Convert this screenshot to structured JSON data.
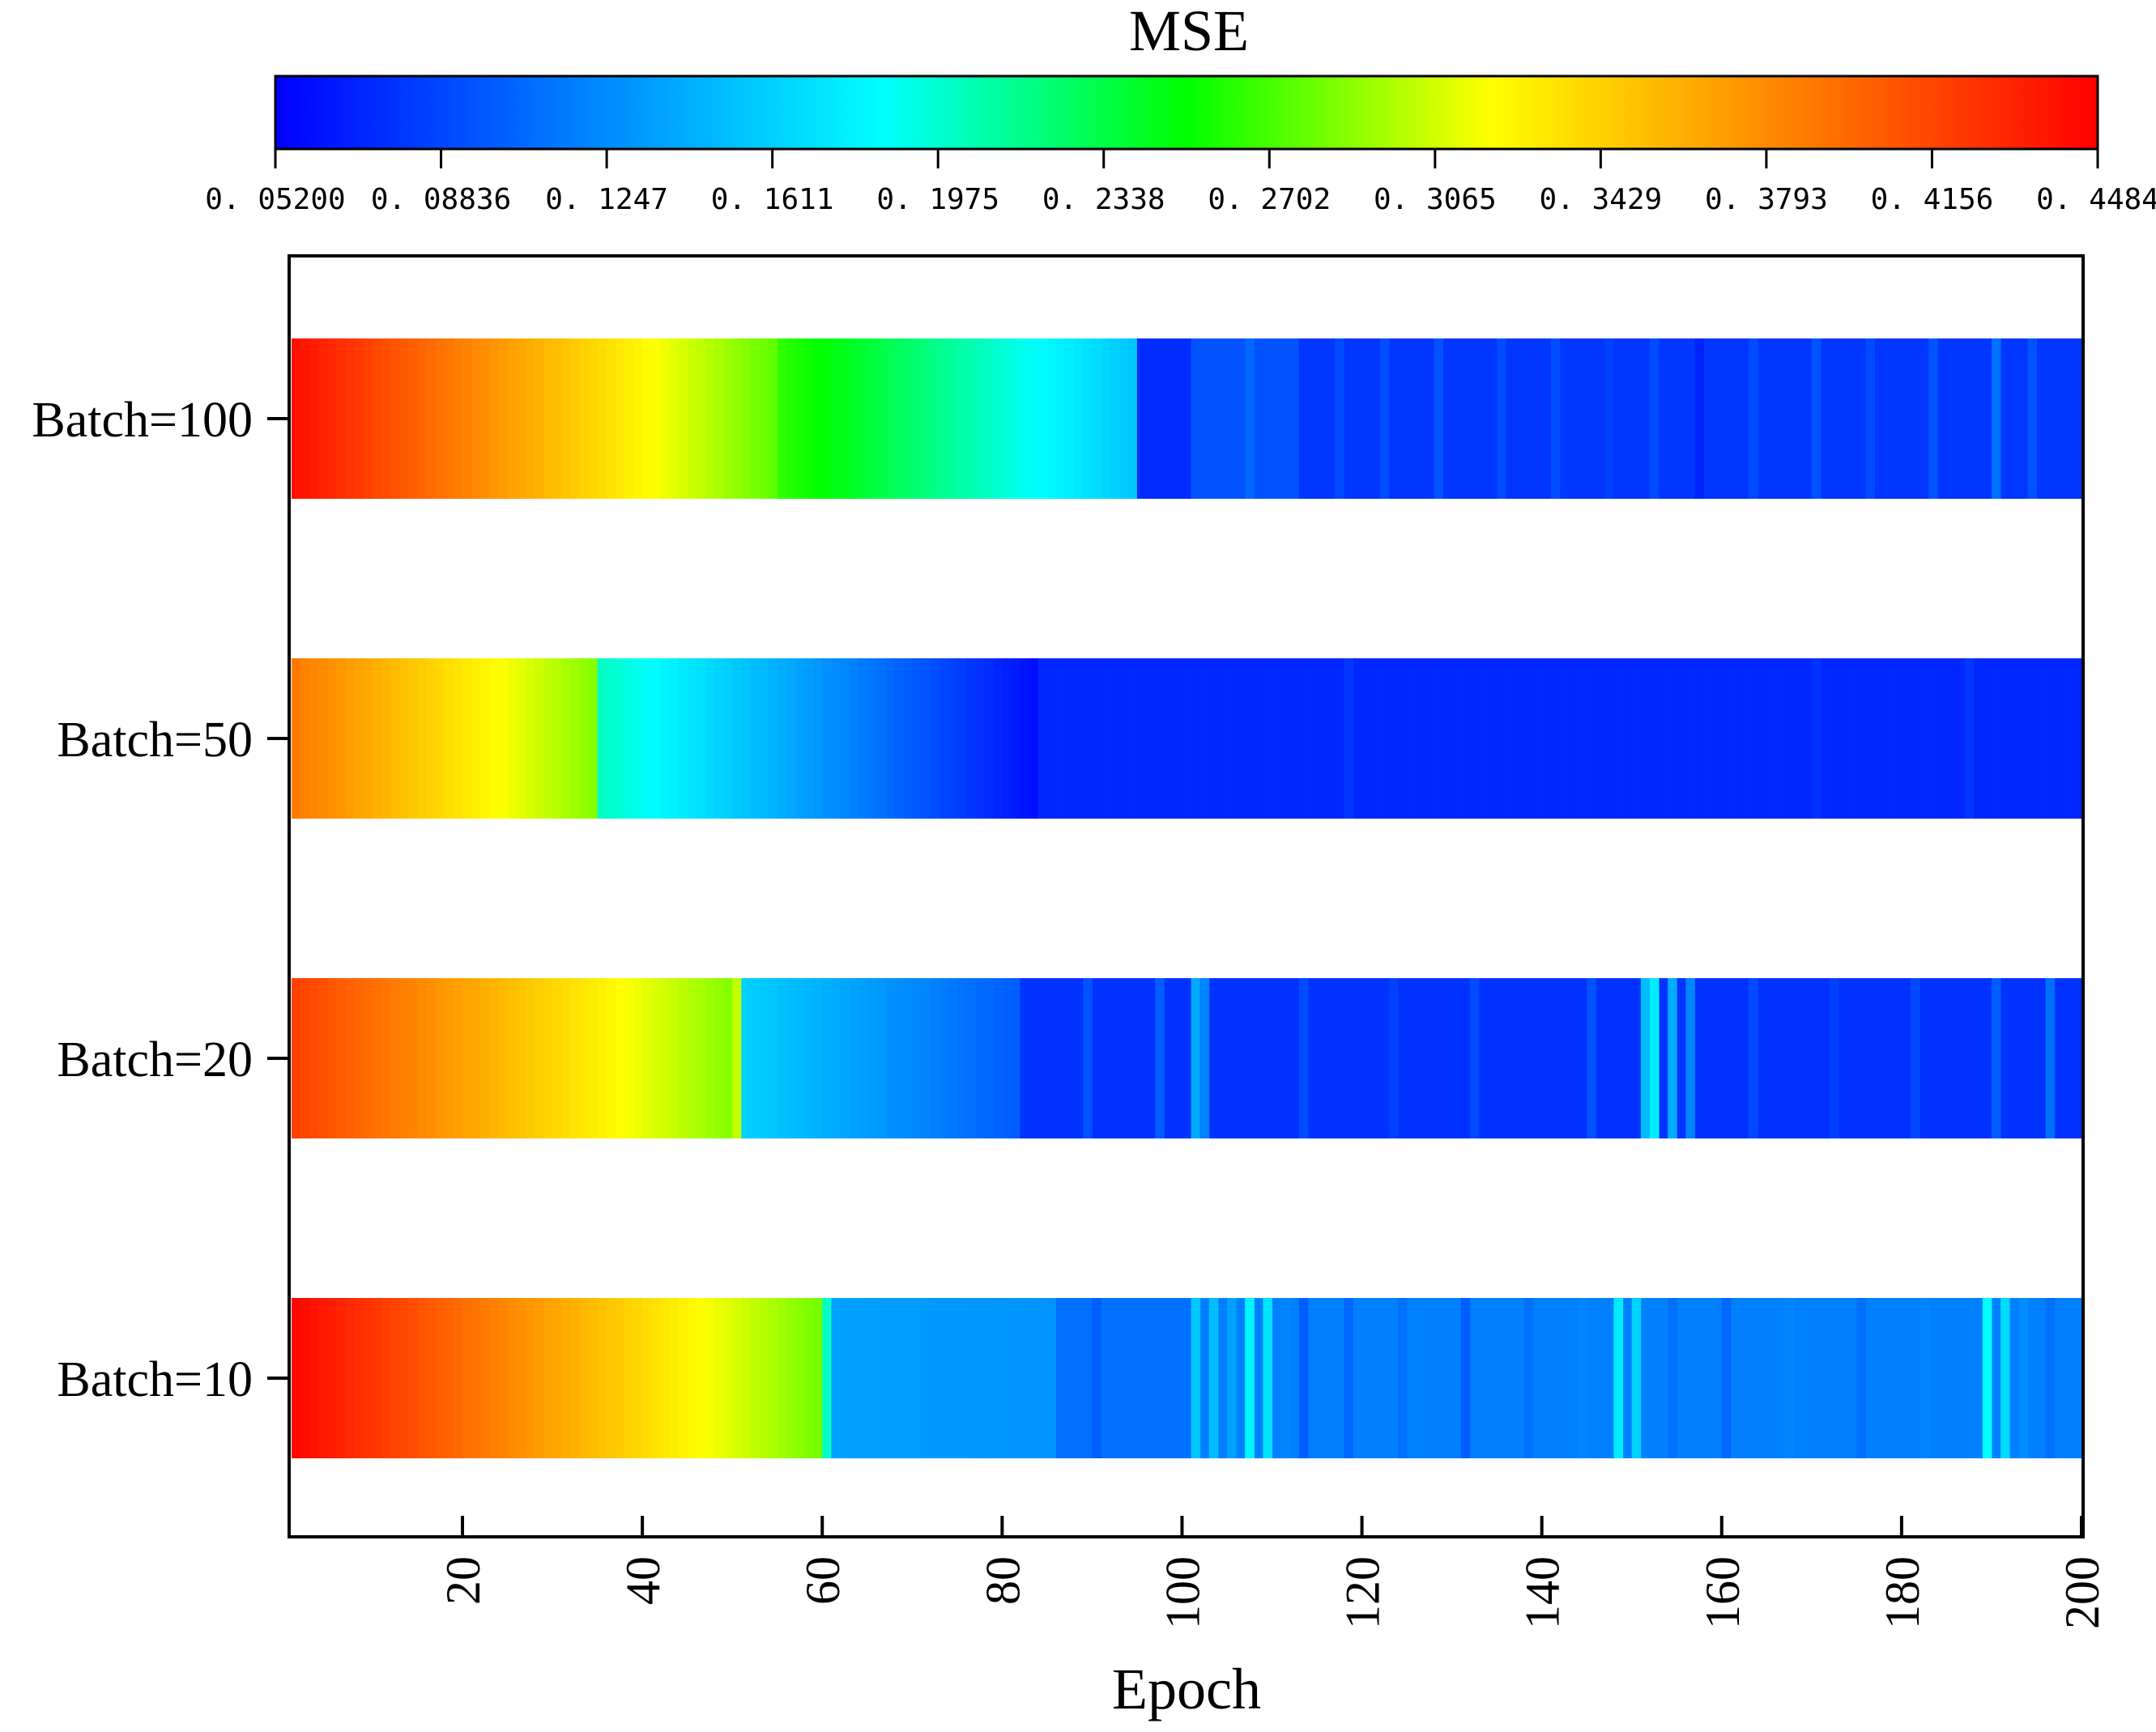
{
  "chart_data": {
    "type": "heatmap",
    "colorbar": {
      "title": "MSE",
      "min": 0.052,
      "max": 0.4484,
      "tick_labels": [
        "0. 05200",
        "0. 08836",
        "0. 1247",
        "0. 1611",
        "0. 1975",
        "0. 2338",
        "0. 2702",
        "0. 3065",
        "0. 3429",
        "0. 3793",
        "0. 4156",
        "0. 4484"
      ],
      "colors": [
        "#0000ff",
        "#0080ff",
        "#00ffff",
        "#00ff00",
        "#ffff00",
        "#ff8000",
        "#ff0000"
      ]
    },
    "xlabel": "Epoch",
    "xlim": [
      1,
      200
    ],
    "x_ticks": [
      20,
      40,
      60,
      80,
      100,
      120,
      140,
      160,
      180,
      200
    ],
    "x_tick_labels": [
      "20",
      "40",
      "60",
      "80",
      "100",
      "120",
      "140",
      "160",
      "180",
      "200"
    ],
    "rows": [
      {
        "label": "Batch=100",
        "segments": [
          {
            "start": 1,
            "end": 55,
            "from": 0.44,
            "to": 0.275
          },
          {
            "start": 55,
            "end": 95,
            "from": 0.262,
            "to": 0.155
          },
          {
            "start": 95,
            "end": 101,
            "from": 0.075,
            "to": 0.075
          },
          {
            "start": 101,
            "end": 113,
            "from": 0.095,
            "to": 0.095
          },
          {
            "start": 113,
            "end": 200,
            "from": 0.08,
            "to": 0.08
          }
        ],
        "noise": [
          {
            "at": 107,
            "v": 0.105
          },
          {
            "at": 117,
            "v": 0.09
          },
          {
            "at": 122,
            "v": 0.092
          },
          {
            "at": 128,
            "v": 0.095
          },
          {
            "at": 135,
            "v": 0.09
          },
          {
            "at": 141,
            "v": 0.092
          },
          {
            "at": 147,
            "v": 0.085
          },
          {
            "at": 152,
            "v": 0.09
          },
          {
            "at": 157,
            "v": 0.07
          },
          {
            "at": 163,
            "v": 0.09
          },
          {
            "at": 170,
            "v": 0.095
          },
          {
            "at": 176,
            "v": 0.09
          },
          {
            "at": 183,
            "v": 0.095
          },
          {
            "at": 190,
            "v": 0.11
          },
          {
            "at": 194,
            "v": 0.095
          }
        ]
      },
      {
        "label": "Batch=50",
        "segments": [
          {
            "start": 1,
            "end": 35,
            "from": 0.385,
            "to": 0.285
          },
          {
            "start": 35,
            "end": 84,
            "from": 0.2,
            "to": 0.06
          },
          {
            "start": 84,
            "end": 200,
            "from": 0.072,
            "to": 0.072
          }
        ],
        "noise": [
          {
            "at": 118,
            "v": 0.08
          },
          {
            "at": 170,
            "v": 0.078
          },
          {
            "at": 187,
            "v": 0.08
          }
        ]
      },
      {
        "label": "Batch=20",
        "segments": [
          {
            "start": 1,
            "end": 50,
            "from": 0.415,
            "to": 0.285
          },
          {
            "start": 50,
            "end": 51,
            "from": 0.3,
            "to": 0.3
          },
          {
            "start": 51,
            "end": 82,
            "from": 0.16,
            "to": 0.1
          },
          {
            "start": 82,
            "end": 200,
            "from": 0.078,
            "to": 0.078
          }
        ],
        "noise": [
          {
            "at": 89,
            "v": 0.095
          },
          {
            "at": 97,
            "v": 0.1
          },
          {
            "at": 101,
            "v": 0.14
          },
          {
            "at": 102,
            "v": 0.12
          },
          {
            "at": 113,
            "v": 0.09
          },
          {
            "at": 123,
            "v": 0.085
          },
          {
            "at": 132,
            "v": 0.09
          },
          {
            "at": 145,
            "v": 0.095
          },
          {
            "at": 151,
            "v": 0.15
          },
          {
            "at": 152,
            "v": 0.175
          },
          {
            "at": 154,
            "v": 0.14
          },
          {
            "at": 156,
            "v": 0.12
          },
          {
            "at": 163,
            "v": 0.09
          },
          {
            "at": 172,
            "v": 0.085
          },
          {
            "at": 181,
            "v": 0.09
          },
          {
            "at": 190,
            "v": 0.1
          },
          {
            "at": 196,
            "v": 0.11
          }
        ]
      },
      {
        "label": "Batch=10",
        "segments": [
          {
            "start": 1,
            "end": 60,
            "from": 0.445,
            "to": 0.28
          },
          {
            "start": 60,
            "end": 61,
            "from": 0.2,
            "to": 0.2
          },
          {
            "start": 61,
            "end": 86,
            "from": 0.135,
            "to": 0.128
          },
          {
            "start": 86,
            "end": 101,
            "from": 0.11,
            "to": 0.11
          },
          {
            "start": 101,
            "end": 200,
            "from": 0.118,
            "to": 0.118
          }
        ],
        "noise": [
          {
            "at": 90,
            "v": 0.1
          },
          {
            "at": 101,
            "v": 0.155
          },
          {
            "at": 103,
            "v": 0.15
          },
          {
            "at": 105,
            "v": 0.135
          },
          {
            "at": 107,
            "v": 0.18
          },
          {
            "at": 109,
            "v": 0.17
          },
          {
            "at": 111,
            "v": 0.12
          },
          {
            "at": 113,
            "v": 0.1
          },
          {
            "at": 118,
            "v": 0.105
          },
          {
            "at": 124,
            "v": 0.11
          },
          {
            "at": 131,
            "v": 0.1
          },
          {
            "at": 138,
            "v": 0.11
          },
          {
            "at": 144,
            "v": 0.12
          },
          {
            "at": 148,
            "v": 0.175
          },
          {
            "at": 150,
            "v": 0.16
          },
          {
            "at": 154,
            "v": 0.11
          },
          {
            "at": 160,
            "v": 0.105
          },
          {
            "at": 167,
            "v": 0.12
          },
          {
            "at": 175,
            "v": 0.11
          },
          {
            "at": 182,
            "v": 0.12
          },
          {
            "at": 189,
            "v": 0.185
          },
          {
            "at": 191,
            "v": 0.165
          },
          {
            "at": 193,
            "v": 0.125
          },
          {
            "at": 196,
            "v": 0.11
          }
        ]
      }
    ]
  }
}
